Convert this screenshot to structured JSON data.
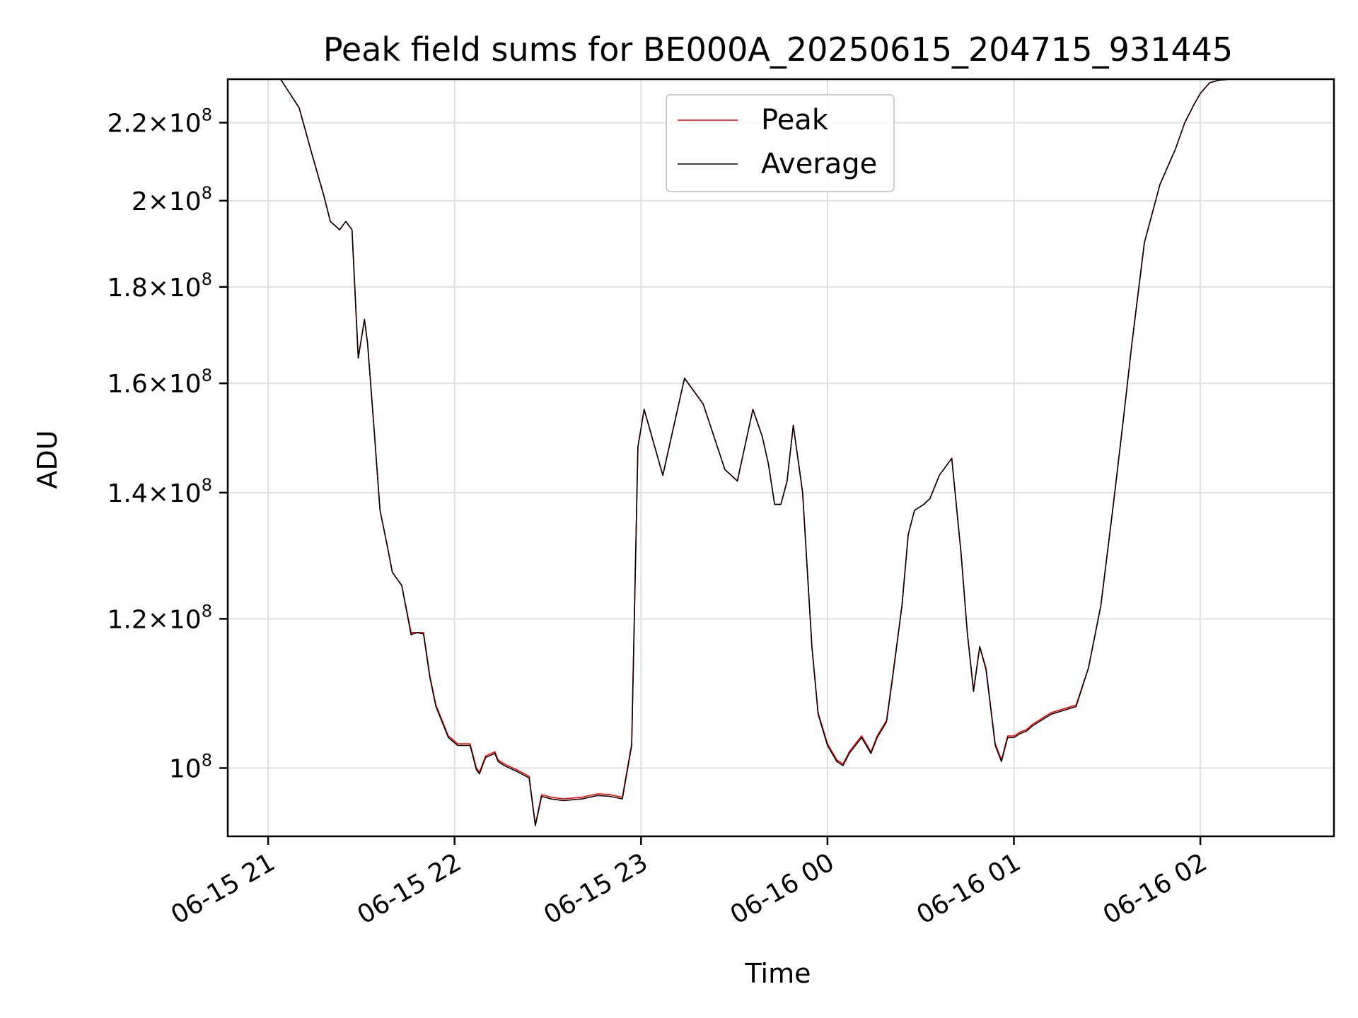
{
  "chart_data": {
    "type": "line",
    "title": "Peak field sums for BE000A_20250615_204715_931445",
    "xlabel": "Time",
    "ylabel": "ADU",
    "y_scale": "log",
    "grid": true,
    "legend_position": "upper-center",
    "x_range": [
      "2025-06-15 20:47",
      "2025-06-16 02:43"
    ],
    "y_range": [
      92000000,
      232000000
    ],
    "x_ticks": [
      {
        "value": "2025-06-15 21:00",
        "label": "06-15 21"
      },
      {
        "value": "2025-06-15 22:00",
        "label": "06-15 22"
      },
      {
        "value": "2025-06-15 23:00",
        "label": "06-15 23"
      },
      {
        "value": "2025-06-16 00:00",
        "label": "06-16 00"
      },
      {
        "value": "2025-06-16 01:00",
        "label": "06-16 01"
      },
      {
        "value": "2025-06-16 02:00",
        "label": "06-16 02"
      }
    ],
    "y_ticks": [
      {
        "value": 100000000,
        "mantissa": "",
        "base": "10",
        "exp": "8"
      },
      {
        "value": 120000000,
        "mantissa": "1.2",
        "base": "10",
        "exp": "8"
      },
      {
        "value": 140000000,
        "mantissa": "1.4",
        "base": "10",
        "exp": "8"
      },
      {
        "value": 160000000,
        "mantissa": "1.6",
        "base": "10",
        "exp": "8"
      },
      {
        "value": 180000000,
        "mantissa": "1.8",
        "base": "10",
        "exp": "8"
      },
      {
        "value": 200000000,
        "mantissa": "2",
        "base": "10",
        "exp": "8"
      },
      {
        "value": 220000000,
        "mantissa": "2.2",
        "base": "10",
        "exp": "8"
      }
    ],
    "series": [
      {
        "name": "Peak",
        "color": "#ff0000",
        "x": [
          "2025-06-15 20:47",
          "2025-06-15 21:04",
          "2025-06-15 21:10",
          "2025-06-15 21:14",
          "2025-06-15 21:18",
          "2025-06-15 21:20",
          "2025-06-15 21:23",
          "2025-06-15 21:25",
          "2025-06-15 21:27",
          "2025-06-15 21:29",
          "2025-06-15 21:31",
          "2025-06-15 21:32",
          "2025-06-15 21:34",
          "2025-06-15 21:36",
          "2025-06-15 21:38",
          "2025-06-15 21:40",
          "2025-06-15 21:43",
          "2025-06-15 21:46",
          "2025-06-15 21:48",
          "2025-06-15 21:50",
          "2025-06-15 21:52",
          "2025-06-15 21:54",
          "2025-06-15 21:56",
          "2025-06-15 21:58",
          "2025-06-15 22:01",
          "2025-06-15 22:05",
          "2025-06-15 22:07",
          "2025-06-15 22:08",
          "2025-06-15 22:10",
          "2025-06-15 22:13",
          "2025-06-15 22:14",
          "2025-06-15 22:16",
          "2025-06-15 22:20",
          "2025-06-15 22:24",
          "2025-06-15 22:26",
          "2025-06-15 22:28",
          "2025-06-15 22:31",
          "2025-06-15 22:35",
          "2025-06-15 22:41",
          "2025-06-15 22:46",
          "2025-06-15 22:50",
          "2025-06-15 22:54",
          "2025-06-15 22:57",
          "2025-06-15 22:59",
          "2025-06-15 23:01",
          "2025-06-15 23:07",
          "2025-06-15 23:14",
          "2025-06-15 23:20",
          "2025-06-15 23:27",
          "2025-06-15 23:31",
          "2025-06-15 23:36",
          "2025-06-15 23:39",
          "2025-06-15 23:41",
          "2025-06-15 23:43",
          "2025-06-15 23:45",
          "2025-06-15 23:47",
          "2025-06-15 23:49",
          "2025-06-15 23:52",
          "2025-06-15 23:55",
          "2025-06-15 23:57",
          "2025-06-16 00:00",
          "2025-06-16 00:03",
          "2025-06-16 00:05",
          "2025-06-16 00:07",
          "2025-06-16 00:09",
          "2025-06-16 00:11",
          "2025-06-16 00:14",
          "2025-06-16 00:16",
          "2025-06-16 00:19",
          "2025-06-16 00:21",
          "2025-06-16 00:24",
          "2025-06-16 00:26",
          "2025-06-16 00:28",
          "2025-06-16 00:31",
          "2025-06-16 00:33",
          "2025-06-16 00:36",
          "2025-06-16 00:40",
          "2025-06-16 00:43",
          "2025-06-16 00:45",
          "2025-06-16 00:47",
          "2025-06-16 00:49",
          "2025-06-16 00:51",
          "2025-06-16 00:54",
          "2025-06-16 00:56",
          "2025-06-16 00:58",
          "2025-06-16 01:00",
          "2025-06-16 01:02",
          "2025-06-16 01:04",
          "2025-06-16 01:06",
          "2025-06-16 01:08",
          "2025-06-16 01:12",
          "2025-06-16 01:16",
          "2025-06-16 01:20",
          "2025-06-16 01:24",
          "2025-06-16 01:28",
          "2025-06-16 01:32",
          "2025-06-16 01:35",
          "2025-06-16 01:38",
          "2025-06-16 01:42",
          "2025-06-16 01:47",
          "2025-06-16 01:52",
          "2025-06-16 01:55",
          "2025-06-16 01:58",
          "2025-06-16 02:00",
          "2025-06-16 02:03",
          "2025-06-16 02:06",
          "2025-06-16 02:10",
          "2025-06-16 02:14",
          "2025-06-16 02:18",
          "2025-06-16 02:24",
          "2025-06-16 02:35",
          "2025-06-16 02:43"
        ],
        "y": [
          232000000,
          232000000,
          224000000,
          212000000,
          201000000,
          195000000,
          193000000,
          195000000,
          193000000,
          165000000,
          173000000,
          168000000,
          152000000,
          137000000,
          132000000,
          127000000,
          125000000,
          118000000,
          118000000,
          118000000,
          112000000,
          108000000,
          106000000,
          104000000,
          103000000,
          103000000,
          100000000,
          99500000,
          101500000,
          102000000,
          101000000,
          100500000,
          99800000,
          99000000,
          93300000,
          96800000,
          96500000,
          96300000,
          96500000,
          96900000,
          96800000,
          96500000,
          103000000,
          148000000,
          155000000,
          143000000,
          161000000,
          156000000,
          144000000,
          142000000,
          155000000,
          150000000,
          145000000,
          138000000,
          138000000,
          142000000,
          152000000,
          140000000,
          116000000,
          107000000,
          103000000,
          101000000,
          100500000,
          102000000,
          103000000,
          104000000,
          102000000,
          104000000,
          106000000,
          112000000,
          122000000,
          133000000,
          137000000,
          138000000,
          139000000,
          143000000,
          146000000,
          130000000,
          118000000,
          110000000,
          116000000,
          113000000,
          103000000,
          101000000,
          104000000,
          104000000,
          104500000,
          104800000,
          105500000,
          106000000,
          107000000,
          107500000,
          108000000,
          113000000,
          122000000,
          138000000,
          152000000,
          168000000,
          190000000,
          204000000,
          213000000,
          220000000,
          225000000,
          228000000,
          231000000,
          231700000,
          232000000,
          232000000,
          232000000,
          232000000,
          232000000,
          232000000
        ]
      },
      {
        "name": "Average",
        "color": "#000000",
        "x": [
          "2025-06-15 20:47",
          "2025-06-15 21:04",
          "2025-06-15 21:10",
          "2025-06-15 21:14",
          "2025-06-15 21:18",
          "2025-06-15 21:20",
          "2025-06-15 21:23",
          "2025-06-15 21:25",
          "2025-06-15 21:27",
          "2025-06-15 21:29",
          "2025-06-15 21:31",
          "2025-06-15 21:32",
          "2025-06-15 21:34",
          "2025-06-15 21:36",
          "2025-06-15 21:38",
          "2025-06-15 21:40",
          "2025-06-15 21:43",
          "2025-06-15 21:46",
          "2025-06-15 21:48",
          "2025-06-15 21:50",
          "2025-06-15 21:52",
          "2025-06-15 21:54",
          "2025-06-15 21:56",
          "2025-06-15 21:58",
          "2025-06-15 22:01",
          "2025-06-15 22:05",
          "2025-06-15 22:07",
          "2025-06-15 22:08",
          "2025-06-15 22:10",
          "2025-06-15 22:13",
          "2025-06-15 22:14",
          "2025-06-15 22:16",
          "2025-06-15 22:20",
          "2025-06-15 22:24",
          "2025-06-15 22:26",
          "2025-06-15 22:28",
          "2025-06-15 22:31",
          "2025-06-15 22:35",
          "2025-06-15 22:41",
          "2025-06-15 22:46",
          "2025-06-15 22:50",
          "2025-06-15 22:54",
          "2025-06-15 22:57",
          "2025-06-15 22:59",
          "2025-06-15 23:01",
          "2025-06-15 23:07",
          "2025-06-15 23:14",
          "2025-06-15 23:20",
          "2025-06-15 23:27",
          "2025-06-15 23:31",
          "2025-06-15 23:36",
          "2025-06-15 23:39",
          "2025-06-15 23:41",
          "2025-06-15 23:43",
          "2025-06-15 23:45",
          "2025-06-15 23:47",
          "2025-06-15 23:49",
          "2025-06-15 23:52",
          "2025-06-15 23:55",
          "2025-06-15 23:57",
          "2025-06-16 00:00",
          "2025-06-16 00:03",
          "2025-06-16 00:05",
          "2025-06-16 00:07",
          "2025-06-16 00:09",
          "2025-06-16 00:11",
          "2025-06-16 00:14",
          "2025-06-16 00:16",
          "2025-06-16 00:19",
          "2025-06-16 00:21",
          "2025-06-16 00:24",
          "2025-06-16 00:26",
          "2025-06-16 00:28",
          "2025-06-16 00:31",
          "2025-06-16 00:33",
          "2025-06-16 00:36",
          "2025-06-16 00:40",
          "2025-06-16 00:43",
          "2025-06-16 00:45",
          "2025-06-16 00:47",
          "2025-06-16 00:49",
          "2025-06-16 00:51",
          "2025-06-16 00:54",
          "2025-06-16 00:56",
          "2025-06-16 00:58",
          "2025-06-16 01:00",
          "2025-06-16 01:02",
          "2025-06-16 01:04",
          "2025-06-16 01:06",
          "2025-06-16 01:08",
          "2025-06-16 01:12",
          "2025-06-16 01:16",
          "2025-06-16 01:20",
          "2025-06-16 01:24",
          "2025-06-16 01:28",
          "2025-06-16 01:32",
          "2025-06-16 01:35",
          "2025-06-16 01:38",
          "2025-06-16 01:42",
          "2025-06-16 01:47",
          "2025-06-16 01:52",
          "2025-06-16 01:55",
          "2025-06-16 01:58",
          "2025-06-16 02:00",
          "2025-06-16 02:03",
          "2025-06-16 02:06",
          "2025-06-16 02:10",
          "2025-06-16 02:14",
          "2025-06-16 02:18",
          "2025-06-16 02:24",
          "2025-06-16 02:35",
          "2025-06-16 02:43"
        ],
        "y": [
          232000000,
          232000000,
          224000000,
          212000000,
          201000000,
          195000000,
          193000000,
          195000000,
          193000000,
          165000000,
          173000000,
          168000000,
          152000000,
          137000000,
          132000000,
          127000000,
          125000000,
          117700000,
          118000000,
          117800000,
          111800000,
          107800000,
          105800000,
          103800000,
          102800000,
          102800000,
          99800000,
          99300000,
          101300000,
          101800000,
          100800000,
          100300000,
          99600000,
          98800000,
          93200000,
          96600000,
          96300000,
          96100000,
          96300000,
          96700000,
          96600000,
          96300000,
          102800000,
          148000000,
          155000000,
          143000000,
          161000000,
          156000000,
          144000000,
          142000000,
          155000000,
          150000000,
          145000000,
          138000000,
          138000000,
          142000000,
          152000000,
          140000000,
          116000000,
          106800000,
          102800000,
          100800000,
          100300000,
          101800000,
          102800000,
          103800000,
          101800000,
          103800000,
          105800000,
          111800000,
          122000000,
          133000000,
          137000000,
          138000000,
          139000000,
          143000000,
          146000000,
          130000000,
          118000000,
          109800000,
          116000000,
          112800000,
          102800000,
          100800000,
          103800000,
          103800000,
          104300000,
          104600000,
          105300000,
          105800000,
          106800000,
          107300000,
          107800000,
          113000000,
          122000000,
          138000000,
          152000000,
          168000000,
          190000000,
          204000000,
          213000000,
          220000000,
          225000000,
          228000000,
          231000000,
          231700000,
          232000000,
          232000000,
          232000000,
          232000000,
          232000000,
          232000000
        ]
      }
    ]
  }
}
